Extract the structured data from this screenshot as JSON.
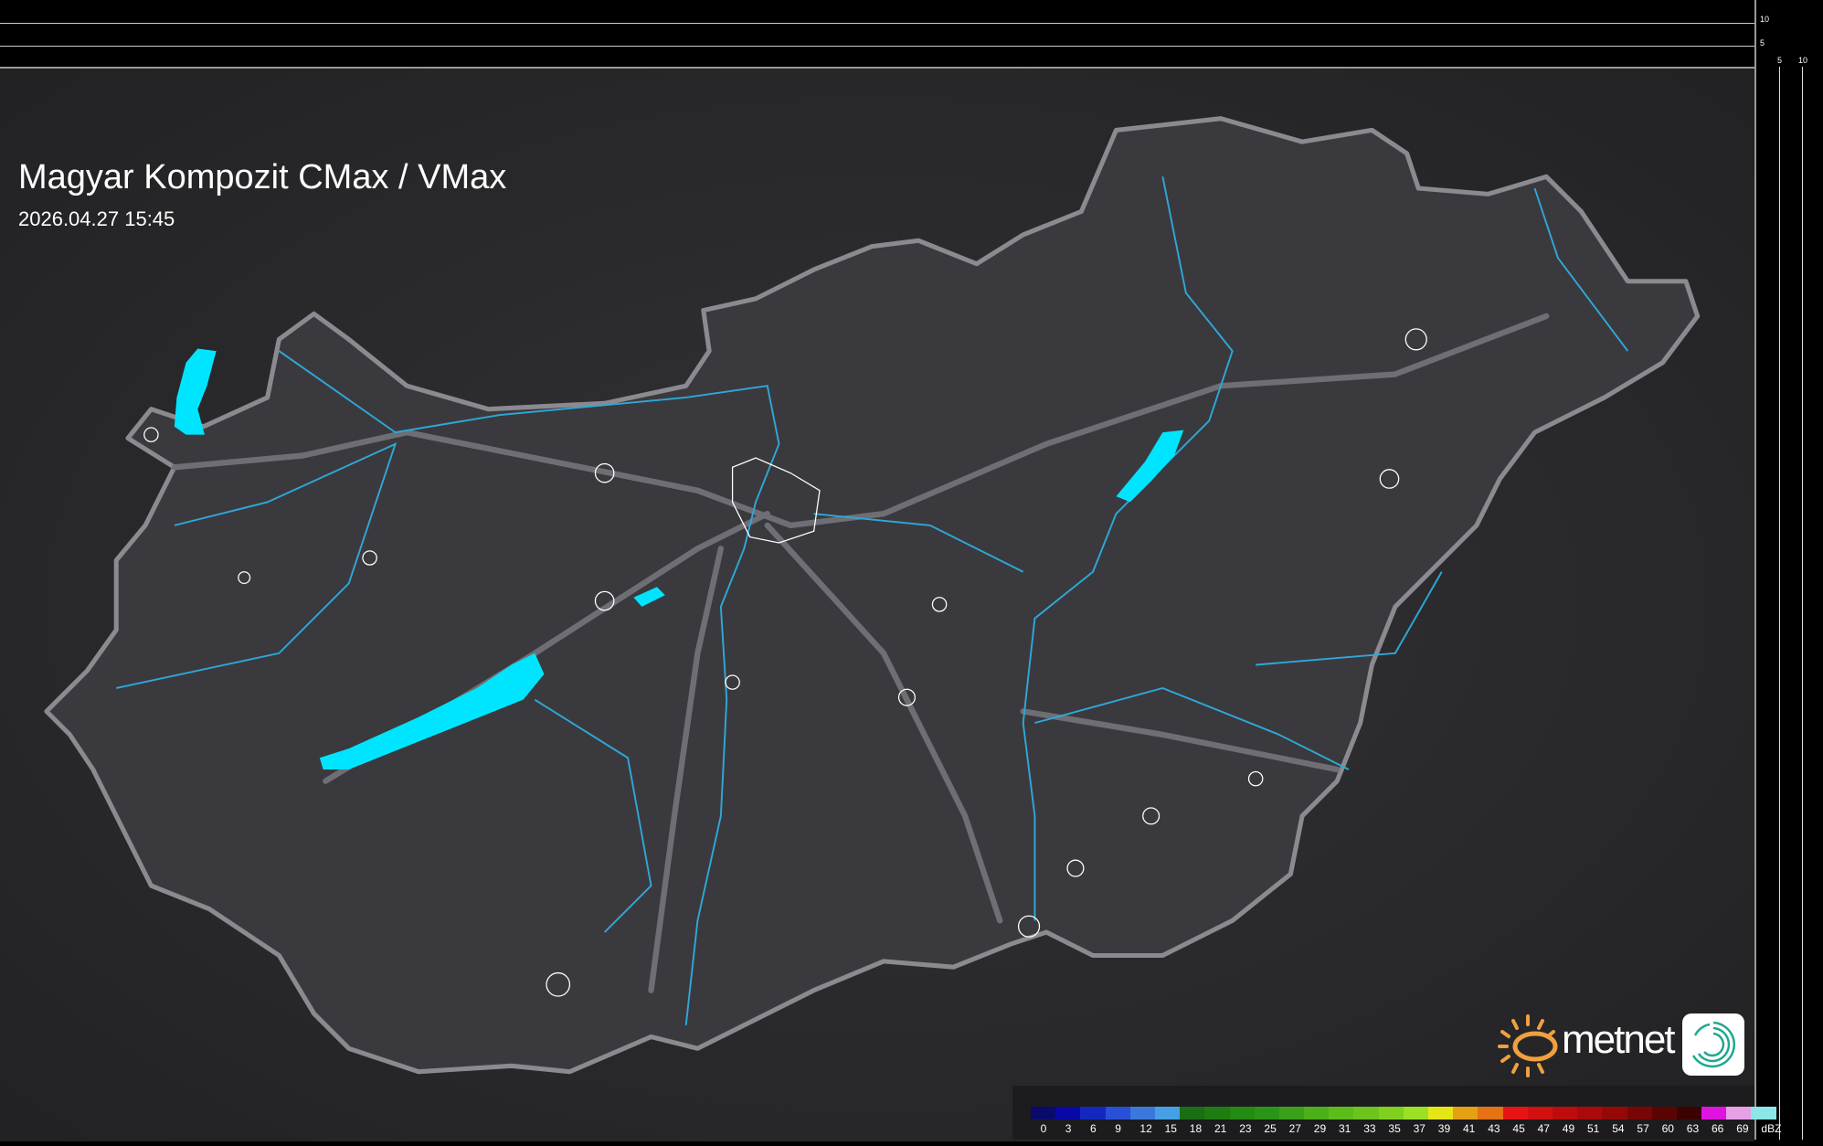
{
  "header": {
    "title": "Magyar Kompozit CMax / VMax",
    "timestamp": "2026.04.27 15:45"
  },
  "profile_scales": {
    "vertical_ticks": [
      "10",
      "5"
    ],
    "horizontal_ticks": [
      "5",
      "10"
    ]
  },
  "legend": {
    "unit": "dBZ",
    "labels": [
      "0",
      "3",
      "6",
      "9",
      "12",
      "15",
      "18",
      "21",
      "23",
      "25",
      "27",
      "29",
      "31",
      "33",
      "35",
      "37",
      "39",
      "41",
      "43",
      "45",
      "47",
      "49",
      "51",
      "54",
      "57",
      "60",
      "63",
      "66",
      "69"
    ],
    "colors": [
      "#0a0a6e",
      "#0808a6",
      "#1428c0",
      "#2850d6",
      "#3c78dc",
      "#46a0e6",
      "#1a6e14",
      "#1e7c10",
      "#238a12",
      "#2a9418",
      "#3aa01a",
      "#4cb01a",
      "#5cbc1a",
      "#6cc41c",
      "#80d020",
      "#9ae024",
      "#e6e614",
      "#e6a014",
      "#e67214",
      "#e61414",
      "#d21010",
      "#be0c0c",
      "#aa0a0a",
      "#960808",
      "#780606",
      "#5a0404",
      "#3c0202",
      "#e014e0",
      "#e6a0e6",
      "#8ce6e6"
    ]
  },
  "brand": {
    "logo_text": "metnet",
    "sun_color": "#f0a040",
    "app_icon_color": "#20a890"
  },
  "map": {
    "water_color": "#00e5ff",
    "river_color": "#2fa8d8",
    "border_color": "#8a8a90"
  }
}
